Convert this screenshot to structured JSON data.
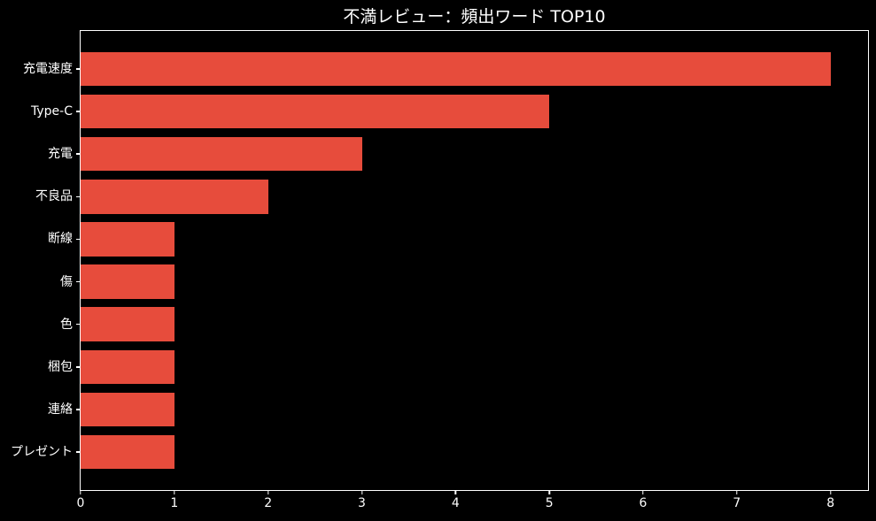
{
  "title": "不満レビュー：頻出ワード TOP10",
  "chart_data": {
    "type": "bar",
    "orientation": "horizontal",
    "title": "不満レビュー：頻出ワード TOP10",
    "categories": [
      "充電速度",
      "Type-C",
      "充電",
      "不良品",
      "断線",
      "傷",
      "色",
      "梱包",
      "連絡",
      "プレゼント"
    ],
    "values": [
      8,
      5,
      3,
      2,
      1,
      1,
      1,
      1,
      1,
      1
    ],
    "xlabel": "",
    "ylabel": "",
    "xlim": [
      0,
      8.4
    ],
    "x_ticks": [
      0,
      1,
      2,
      3,
      4,
      5,
      6,
      7,
      8
    ],
    "bar_height_fraction": 0.8,
    "grid": false,
    "legend_position": "none",
    "colors": {
      "bar": "#e74c3c",
      "background": "#000000",
      "text": "#ffffff",
      "spine": "#ffffff"
    }
  }
}
